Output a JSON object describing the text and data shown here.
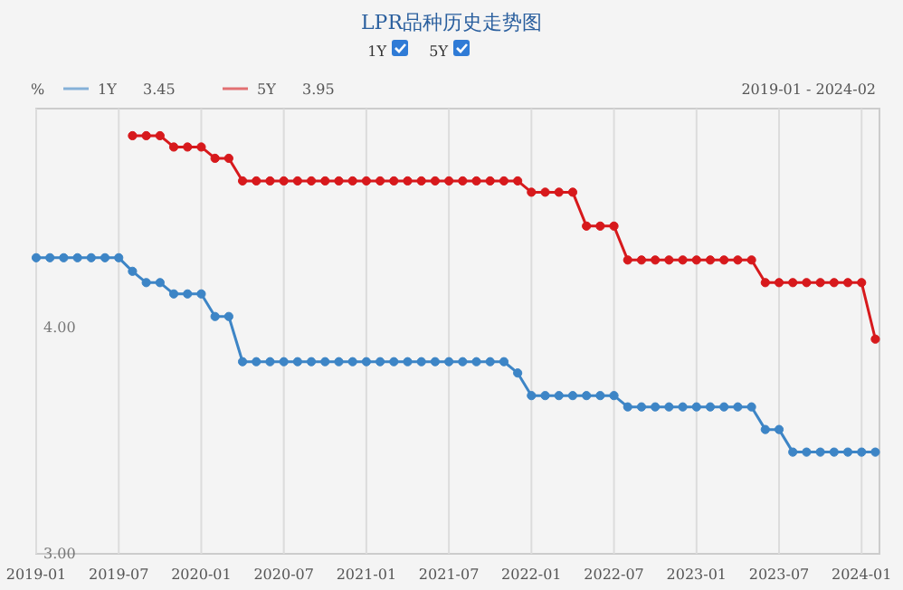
{
  "chart_data": {
    "type": "line",
    "title": "LPR品种历史走势图",
    "ylabel": "%",
    "annotations": [
      "3.45",
      "3.95",
      "2019-01 - 2024-02"
    ],
    "x": [
      "2019-01",
      "2019-02",
      "2019-03",
      "2019-04",
      "2019-05",
      "2019-06",
      "2019-07",
      "2019-08",
      "2019-09",
      "2019-10",
      "2019-11",
      "2019-12",
      "2020-01",
      "2020-02",
      "2020-03",
      "2020-04",
      "2020-05",
      "2020-06",
      "2020-07",
      "2020-08",
      "2020-09",
      "2020-10",
      "2020-11",
      "2020-12",
      "2021-01",
      "2021-02",
      "2021-03",
      "2021-04",
      "2021-05",
      "2021-06",
      "2021-07",
      "2021-08",
      "2021-09",
      "2021-10",
      "2021-11",
      "2021-12",
      "2022-01",
      "2022-02",
      "2022-03",
      "2022-04",
      "2022-05",
      "2022-06",
      "2022-07",
      "2022-08",
      "2022-09",
      "2022-10",
      "2022-11",
      "2022-12",
      "2023-01",
      "2023-02",
      "2023-03",
      "2023-04",
      "2023-05",
      "2023-06",
      "2023-07",
      "2023-08",
      "2023-09",
      "2023-10",
      "2023-11",
      "2023-12",
      "2024-01",
      "2024-02"
    ],
    "series": [
      {
        "name": "1Y",
        "color": "#3d85c6",
        "values": [
          4.31,
          4.31,
          4.31,
          4.31,
          4.31,
          4.31,
          4.31,
          4.25,
          4.2,
          4.2,
          4.15,
          4.15,
          4.15,
          4.05,
          4.05,
          3.85,
          3.85,
          3.85,
          3.85,
          3.85,
          3.85,
          3.85,
          3.85,
          3.85,
          3.85,
          3.85,
          3.85,
          3.85,
          3.85,
          3.85,
          3.85,
          3.85,
          3.85,
          3.85,
          3.85,
          3.8,
          3.7,
          3.7,
          3.7,
          3.7,
          3.7,
          3.7,
          3.7,
          3.65,
          3.65,
          3.65,
          3.65,
          3.65,
          3.65,
          3.65,
          3.65,
          3.65,
          3.65,
          3.55,
          3.55,
          3.45,
          3.45,
          3.45,
          3.45,
          3.45,
          3.45,
          3.45
        ]
      },
      {
        "name": "5Y",
        "color": "#d7191c",
        "x": [
          "2019-08",
          "2019-09",
          "2019-10",
          "2019-11",
          "2019-12",
          "2020-01",
          "2020-02",
          "2020-03",
          "2020-04",
          "2020-05",
          "2020-06",
          "2020-07",
          "2020-08",
          "2020-09",
          "2020-10",
          "2020-11",
          "2020-12",
          "2021-01",
          "2021-02",
          "2021-03",
          "2021-04",
          "2021-05",
          "2021-06",
          "2021-07",
          "2021-08",
          "2021-09",
          "2021-10",
          "2021-11",
          "2021-12",
          "2022-01",
          "2022-02",
          "2022-03",
          "2022-04",
          "2022-05",
          "2022-06",
          "2022-07",
          "2022-08",
          "2022-09",
          "2022-10",
          "2022-11",
          "2022-12",
          "2023-01",
          "2023-02",
          "2023-03",
          "2023-04",
          "2023-05",
          "2023-06",
          "2023-07",
          "2023-08",
          "2023-09",
          "2023-10",
          "2023-11",
          "2023-12",
          "2024-01",
          "2024-02"
        ],
        "values": [
          4.85,
          4.85,
          4.85,
          4.8,
          4.8,
          4.8,
          4.75,
          4.75,
          4.65,
          4.65,
          4.65,
          4.65,
          4.65,
          4.65,
          4.65,
          4.65,
          4.65,
          4.65,
          4.65,
          4.65,
          4.65,
          4.65,
          4.65,
          4.65,
          4.65,
          4.65,
          4.65,
          4.65,
          4.65,
          4.6,
          4.6,
          4.6,
          4.6,
          4.45,
          4.45,
          4.45,
          4.3,
          4.3,
          4.3,
          4.3,
          4.3,
          4.3,
          4.3,
          4.3,
          4.3,
          4.3,
          4.2,
          4.2,
          4.2,
          4.2,
          4.2,
          4.2,
          4.2,
          4.2,
          3.95
        ]
      }
    ],
    "xlim": [
      "2019-01-01",
      "2024-02-10"
    ],
    "xticks": [
      "2019-01",
      "2019-07",
      "2020-01",
      "2020-07",
      "2021-01",
      "2021-07",
      "2022-01",
      "2022-07",
      "2023-01",
      "2023-07",
      "2024-01"
    ],
    "ylim": [
      3,
      4.97
    ],
    "yticks": [
      {
        "value": 3,
        "label": "3.00"
      },
      {
        "value": 4,
        "label": "4.00"
      }
    ],
    "grid": "x",
    "legend": "top left",
    "marker": "circle",
    "line_style": "solid"
  }
}
